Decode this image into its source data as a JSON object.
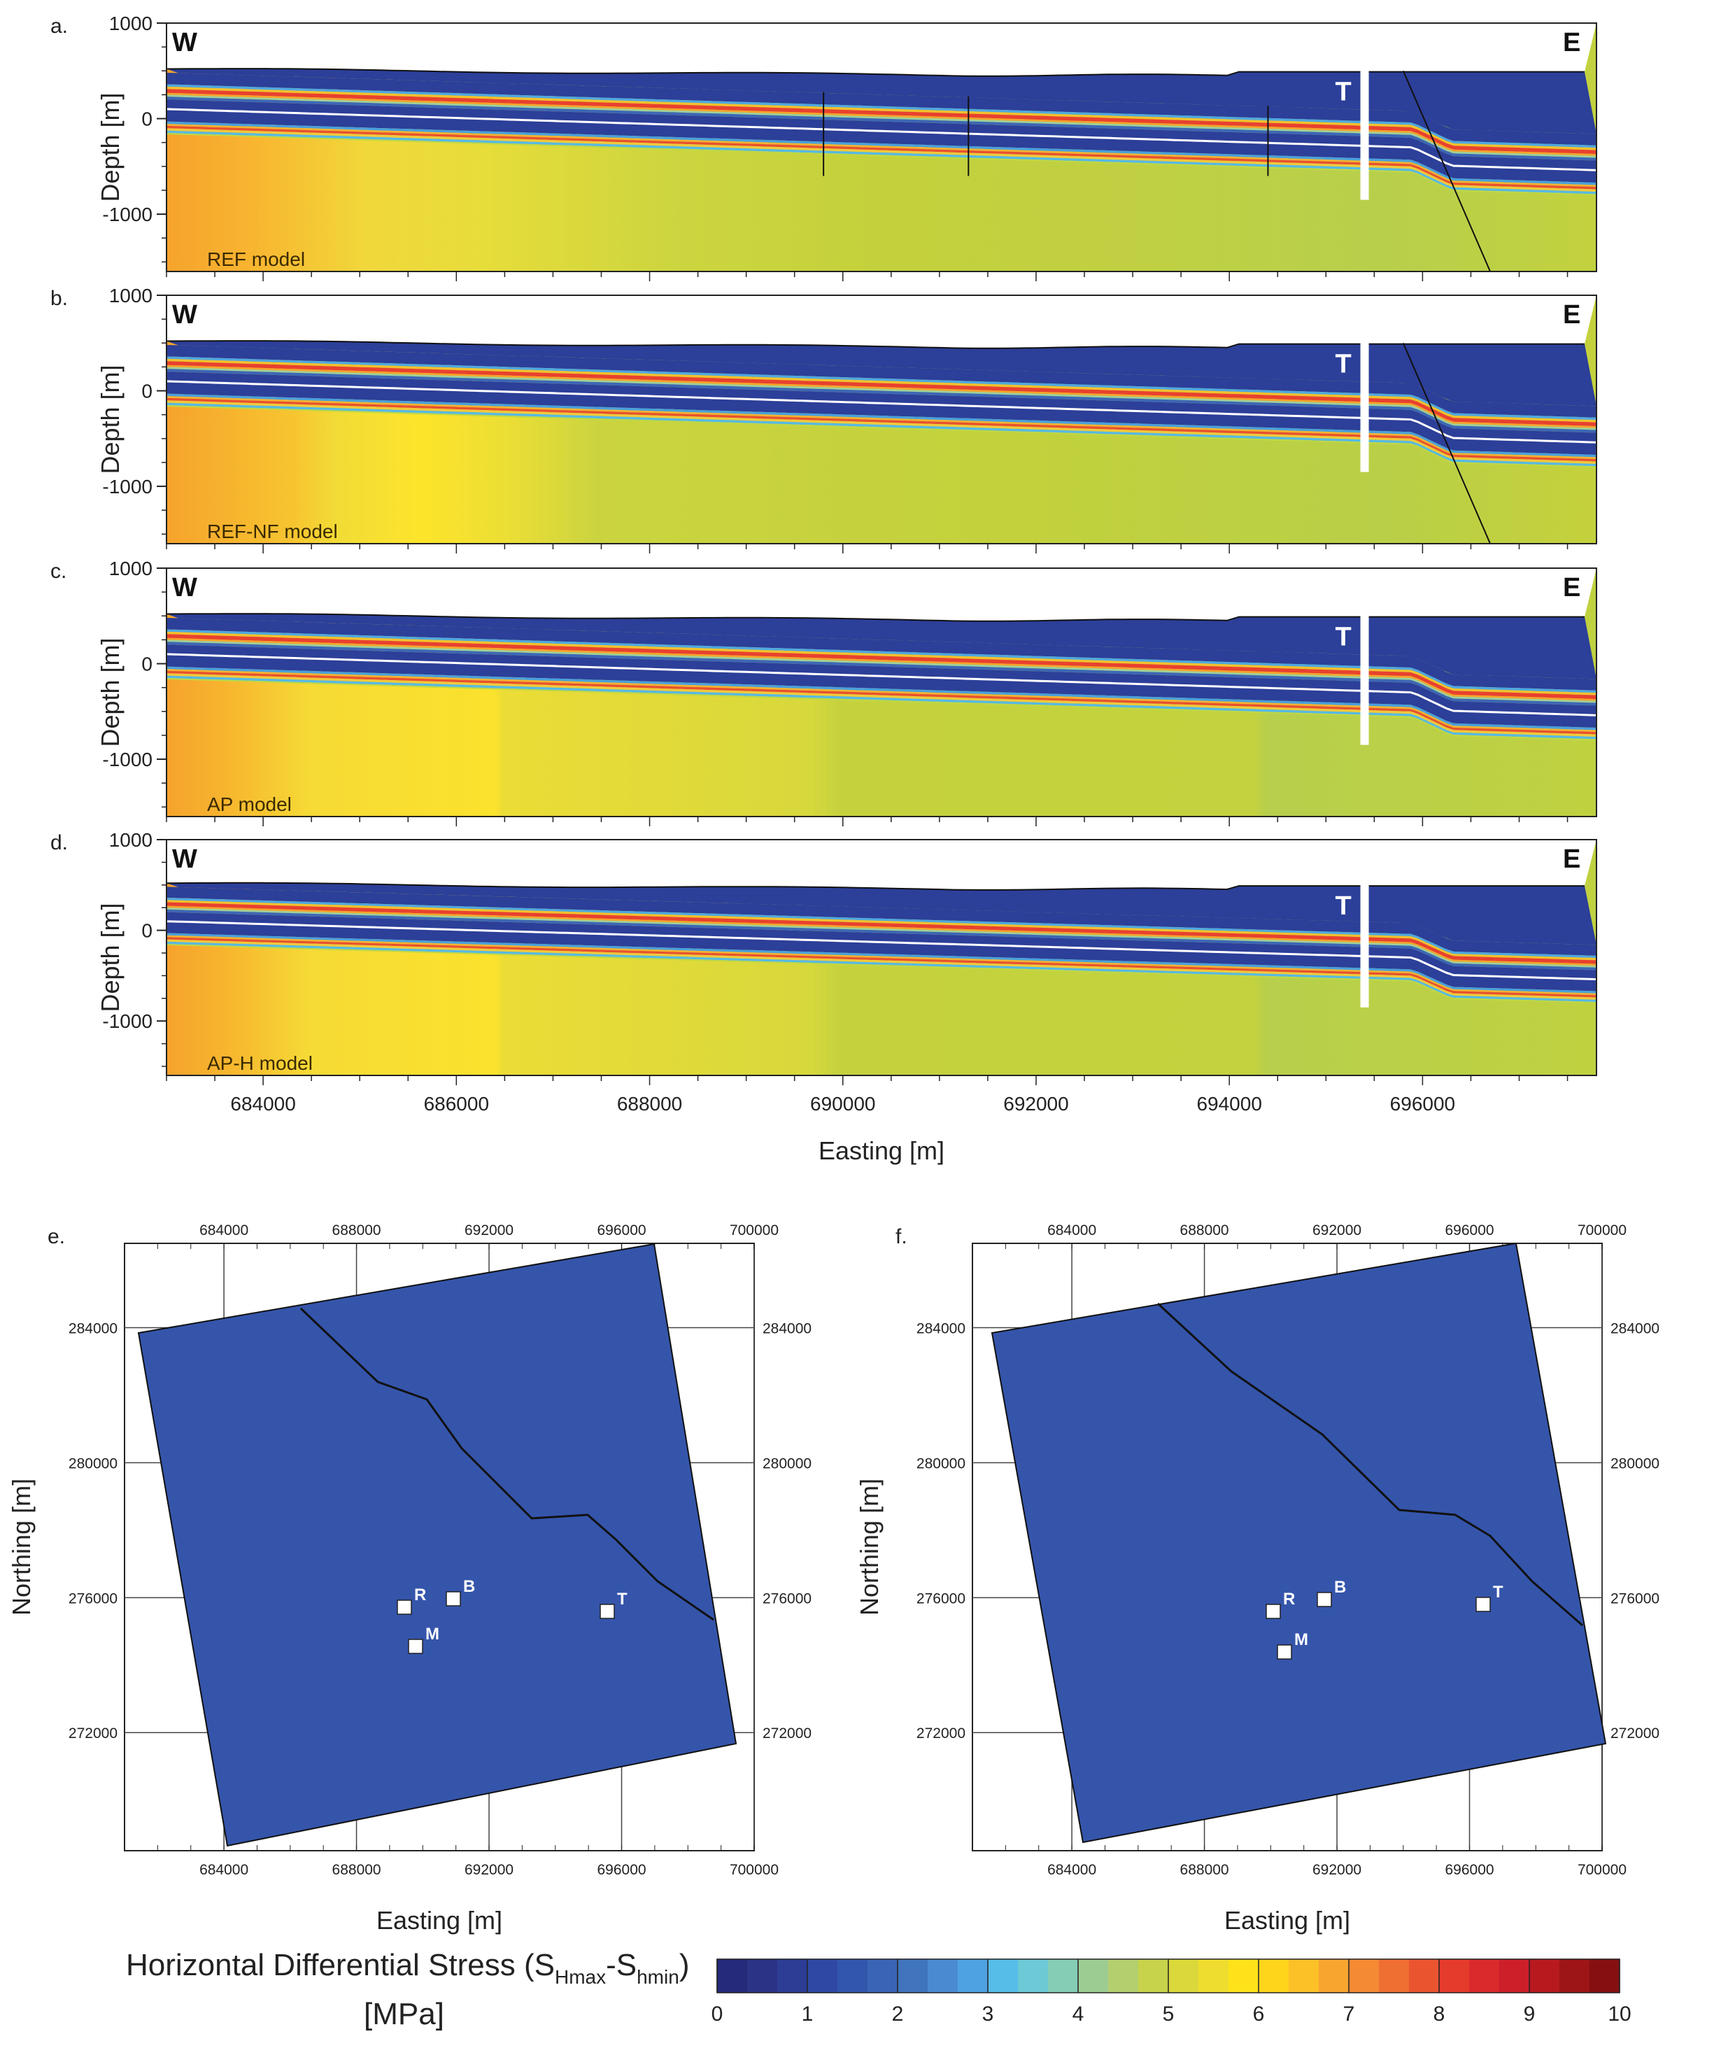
{
  "chart_data": [
    {
      "type": "heatmap",
      "panel": "a.",
      "model_label": "REF model",
      "west_label": "W",
      "east_label": "E",
      "well_label": "T",
      "ylabel": "Depth [m]",
      "xlim": [
        683000,
        697800
      ],
      "ylim": [
        -1600,
        1000
      ],
      "yticks": [
        1000,
        0,
        -1000
      ],
      "faults_drawn": true,
      "well_easting": 695400,
      "well_depth_range": [
        500,
        -850
      ]
    },
    {
      "type": "heatmap",
      "panel": "b.",
      "model_label": "REF-NF model",
      "west_label": "W",
      "east_label": "E",
      "well_label": "T",
      "ylabel": "Depth [m]",
      "xlim": [
        683000,
        697800
      ],
      "ylim": [
        -1600,
        1000
      ],
      "yticks": [
        1000,
        0,
        -1000
      ],
      "faults_drawn": false,
      "well_easting": 695400,
      "well_depth_range": [
        500,
        -850
      ]
    },
    {
      "type": "heatmap",
      "panel": "c.",
      "model_label": "AP model",
      "west_label": "W",
      "east_label": "E",
      "well_label": "T",
      "ylabel": "Depth [m]",
      "xlim": [
        683000,
        697800
      ],
      "ylim": [
        -1600,
        1000
      ],
      "yticks": [
        1000,
        0,
        -1000
      ],
      "faults_drawn": false,
      "well_easting": 695400,
      "well_depth_range": [
        500,
        -850
      ]
    },
    {
      "type": "heatmap",
      "panel": "d.",
      "model_label": "AP-H model",
      "west_label": "W",
      "east_label": "E",
      "well_label": "T",
      "ylabel": "Depth [m]",
      "xlabel": "Easting [m]",
      "xlim": [
        683000,
        697800
      ],
      "ylim": [
        -1600,
        1000
      ],
      "yticks": [
        1000,
        0,
        -1000
      ],
      "xticks": [
        684000,
        686000,
        688000,
        690000,
        692000,
        694000,
        696000
      ],
      "well_easting": 695400,
      "well_depth_range": [
        500,
        -850
      ]
    },
    {
      "type": "heatmap",
      "panel": "e.",
      "xlabel": "Easting [m]",
      "ylabel": "Northing [m]",
      "xticks": [
        684000,
        688000,
        692000,
        696000,
        700000
      ],
      "yticks": [
        284000,
        280000,
        276000,
        272000
      ],
      "sites": [
        {
          "label": "R",
          "easting": 689300,
          "northing": 277500
        },
        {
          "label": "B",
          "easting": 690700,
          "northing": 277900
        },
        {
          "label": "M",
          "easting": 689600,
          "northing": 276000
        },
        {
          "label": "T",
          "easting": 695600,
          "northing": 277600
        }
      ],
      "dominant_value_mpa": 2
    },
    {
      "type": "heatmap",
      "panel": "f.",
      "xlabel": "Easting [m]",
      "ylabel": "Northing [m]",
      "xticks": [
        684000,
        688000,
        692000,
        696000,
        700000
      ],
      "yticks": [
        284000,
        280000,
        276000,
        272000
      ],
      "sites": [
        {
          "label": "R",
          "easting": 689000,
          "northing": 277500
        },
        {
          "label": "B",
          "easting": 691500,
          "northing": 278000
        },
        {
          "label": "M",
          "easting": 690100,
          "northing": 276200
        },
        {
          "label": "T",
          "easting": 695800,
          "northing": 277800
        }
      ],
      "dominant_value_mpa": 2
    }
  ],
  "colorbar": {
    "title_main": "Horizontal Differential Stress (S",
    "title_sub1": "Hmax",
    "title_mid": "-S",
    "title_sub2": "hmin",
    "title_end": ")",
    "unit": "[MPa]",
    "ticks": [
      0,
      1,
      2,
      3,
      4,
      5,
      6,
      7,
      8,
      9,
      10
    ],
    "range": [
      0,
      10
    ],
    "colors": [
      "#262a7a",
      "#2b3386",
      "#2d3c95",
      "#2f49a3",
      "#3356ad",
      "#3a64b5",
      "#4074bd",
      "#4a8ad0",
      "#4fa2e2",
      "#56bde8",
      "#6cc9d5",
      "#86cdb5",
      "#9dcc92",
      "#b3cf6e",
      "#c7d34a",
      "#dad83a",
      "#eedd2e",
      "#ffe21a",
      "#ffd51c",
      "#fcc127",
      "#f8a530",
      "#f48a33",
      "#ef6e32",
      "#ea5530",
      "#e53b2d",
      "#da2a2c",
      "#cc1f2a",
      "#b7191f",
      "#9d1517",
      "#841012"
    ]
  },
  "colors": {
    "deep_blue": "#2c3f99",
    "mid_yellow": "#c4d43c",
    "orange": "#f6a32c",
    "red": "#e8412f",
    "cyan": "#56bde8",
    "map_blue": "#3555ab"
  }
}
